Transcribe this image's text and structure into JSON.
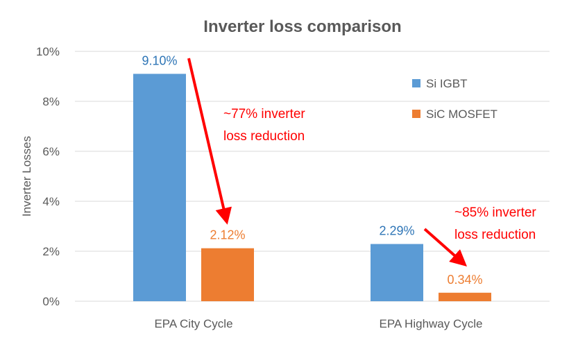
{
  "chart_data": {
    "type": "bar",
    "title": "Inverter loss comparison",
    "xlabel": "",
    "ylabel": "Inverter Losses",
    "categories": [
      "EPA City Cycle",
      "EPA Highway Cycle"
    ],
    "series": [
      {
        "name": "Si IGBT",
        "values": [
          9.1,
          2.29
        ],
        "labels": [
          "9.10%",
          "2.29%"
        ],
        "color": "#5b9bd5"
      },
      {
        "name": "SiC MOSFET",
        "values": [
          2.12,
          0.34
        ],
        "labels": [
          "2.12%",
          "0.34%"
        ],
        "color": "#ed7d31"
      }
    ],
    "ylim": [
      0,
      10
    ],
    "yticks": [
      0,
      2,
      4,
      6,
      8,
      10
    ],
    "ytick_labels": [
      "0%",
      "2%",
      "4%",
      "6%",
      "8%",
      "10%"
    ],
    "grid": true,
    "legend_position": "right",
    "annotations": [
      {
        "category": "EPA City Cycle",
        "line1": "~77% inverter",
        "line2": "loss reduction",
        "color": "#ff0000"
      },
      {
        "category": "EPA Highway Cycle",
        "line1": "~85% inverter",
        "line2": "loss reduction",
        "color": "#ff0000"
      }
    ]
  }
}
